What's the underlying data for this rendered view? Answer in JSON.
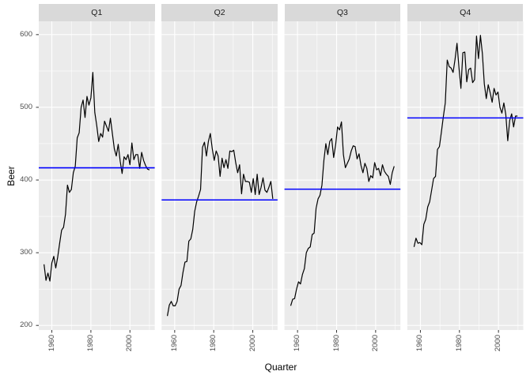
{
  "chart_data": {
    "type": "line",
    "title": "",
    "xlabel": "Quarter",
    "ylabel": "Beer",
    "legend": "none",
    "grid": true,
    "x_ticks": [
      1960,
      1980,
      2000
    ],
    "x_minor_ticks": [
      1950,
      1970,
      1990,
      2010
    ],
    "y_ticks": [
      200,
      300,
      400,
      500,
      600
    ],
    "y_minor_ticks": [
      250,
      350,
      450,
      550
    ],
    "x_domain": [
      1953.3,
      2012.7
    ],
    "y_domain": [
      193.7,
      618.3
    ],
    "colors": {
      "series": "#000000",
      "mean_line": "#0000FF",
      "panel_bg": "#EBEBEB",
      "strip_bg": "#D9D9D9",
      "grid": "#FFFFFF",
      "axis_text": "#4D4D4D",
      "tick_mark": "#333333"
    },
    "facets": [
      {
        "label": "Q1",
        "start_year": 1956,
        "quarter_offset": 0.0,
        "mean": 416.8,
        "values": [
          284,
          262,
          272,
          261,
          286,
          295,
          279,
          294,
          313,
          331,
          335,
          353,
          393,
          383,
          387,
          410,
          419,
          458,
          465,
          500,
          510,
          486,
          515,
          503,
          513,
          548,
          493,
          475,
          453,
          464,
          459,
          481,
          474,
          467,
          485,
          464,
          443,
          433,
          449,
          426,
          409,
          432,
          428,
          435,
          421,
          451,
          428,
          435,
          435,
          416,
          438,
          427,
          420,
          415,
          414
        ]
      },
      {
        "label": "Q2",
        "start_year": 1956,
        "quarter_offset": 0.25,
        "mean": 372.6,
        "values": [
          213,
          228,
          233,
          227,
          227,
          233,
          250,
          255,
          273,
          287,
          288,
          316,
          319,
          332,
          357,
          370,
          378,
          387,
          445,
          452,
          433,
          453,
          464,
          443,
          427,
          440,
          433,
          405,
          430,
          417,
          428,
          416,
          440,
          439,
          441,
          424,
          410,
          421,
          381,
          408,
          398,
          398,
          397,
          383,
          402,
          380,
          408,
          380,
          390,
          403,
          386,
          383,
          390,
          398,
          374
        ]
      },
      {
        "label": "Q3",
        "start_year": 1956,
        "quarter_offset": 0.5,
        "mean": 387.4,
        "values": [
          227,
          236,
          237,
          250,
          260,
          257,
          270,
          278,
          300,
          306,
          308,
          325,
          327,
          361,
          374,
          379,
          393,
          427,
          450,
          435,
          453,
          457,
          431,
          448,
          473,
          469,
          480,
          435,
          417,
          423,
          429,
          440,
          447,
          446,
          429,
          436,
          420,
          410,
          423,
          416,
          398,
          406,
          403,
          424,
          414,
          416,
          406,
          421,
          412,
          408,
          405,
          394,
          410,
          419
        ]
      },
      {
        "label": "Q4",
        "start_year": 1956,
        "quarter_offset": 0.75,
        "mean": 485.4,
        "values": [
          308,
          320,
          313,
          314,
          311,
          339,
          346,
          363,
          370,
          386,
          402,
          405,
          442,
          446,
          466,
          487,
          506,
          565,
          556,
          554,
          548,
          566,
          588,
          555,
          526,
          575,
          576,
          535,
          552,
          554,
          534,
          538,
          598,
          567,
          599,
          574,
          532,
          512,
          531,
          520,
          507,
          526,
          517,
          521,
          500,
          492,
          506,
          490,
          454,
          482,
          491,
          473,
          488,
          488
        ]
      }
    ]
  }
}
